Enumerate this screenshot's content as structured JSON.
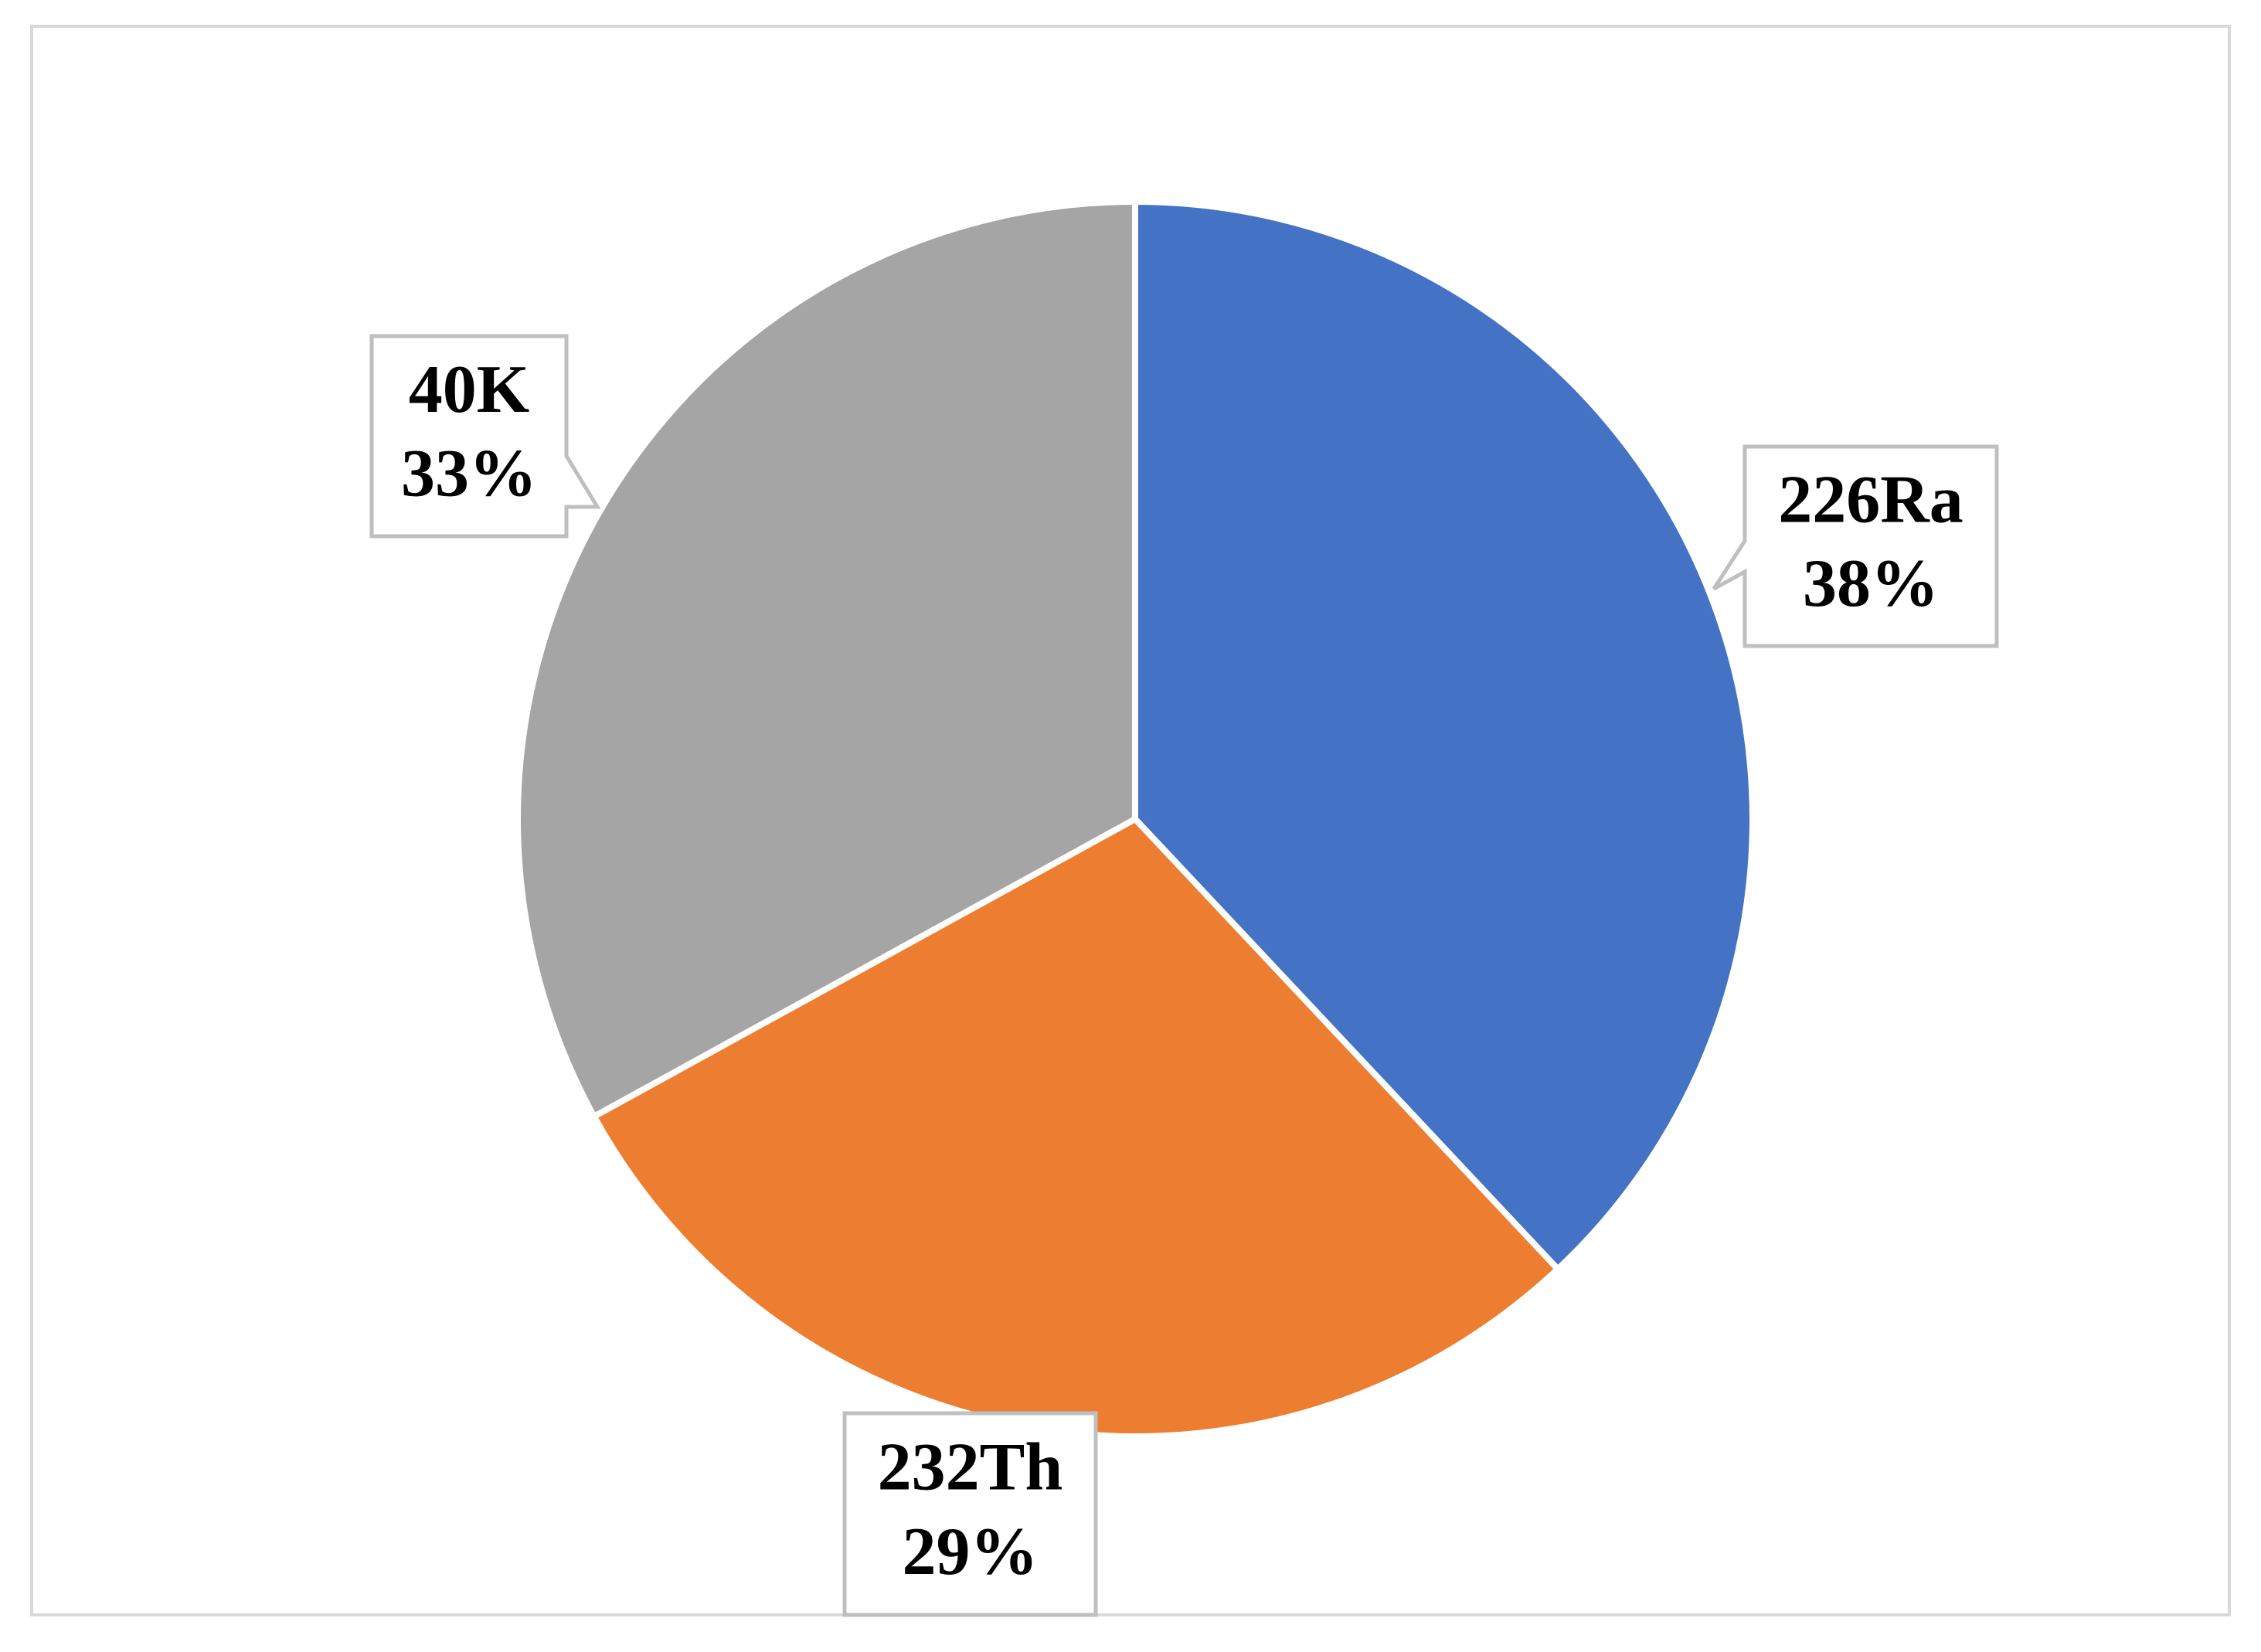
{
  "chart_data": {
    "type": "pie",
    "categories": [
      "226Ra",
      "232Th",
      "40K"
    ],
    "values": [
      38,
      29,
      33
    ],
    "value_labels": [
      "38%",
      "29%",
      "33%"
    ],
    "colors": [
      "#4472c4",
      "#ed7d31",
      "#a5a5a5"
    ],
    "start_angle": "top",
    "direction": "clockwise"
  }
}
